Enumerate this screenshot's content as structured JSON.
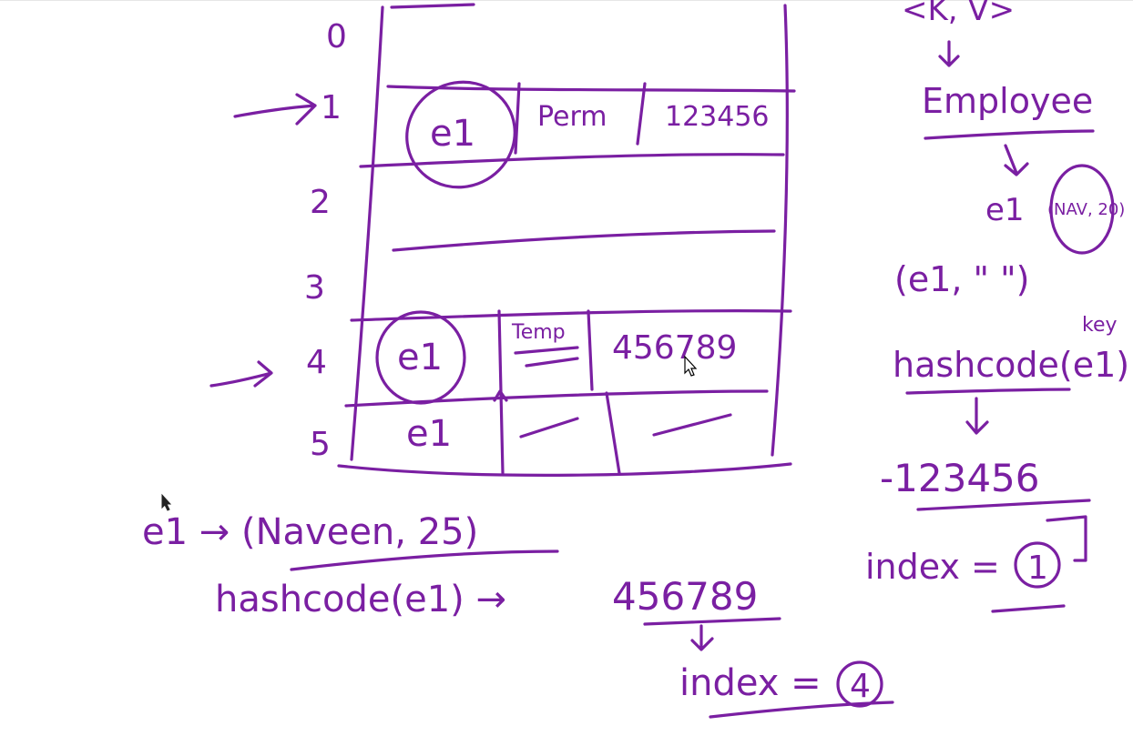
{
  "colors": {
    "ink": "#7a1fa2",
    "background": "#ffffff"
  },
  "table": {
    "row_indices": [
      "0",
      "1",
      "2",
      "3",
      "4",
      "5"
    ],
    "rows": [
      {
        "key": "",
        "value": "",
        "hash": ""
      },
      {
        "key": "e1",
        "value": "Perm",
        "hash": "123456"
      },
      {
        "key": "",
        "value": "",
        "hash": ""
      },
      {
        "key": "",
        "value": "",
        "hash": ""
      },
      {
        "key": "e1",
        "value": "Temp",
        "hash": "456789"
      },
      {
        "key": "e1",
        "value": "—",
        "hash": "—"
      }
    ]
  },
  "right_notes": {
    "kv": "<K, V>",
    "class_name": "Employee",
    "object": "e1",
    "object_args": "(NAV, 20)",
    "put_call": "(e1, \" \")",
    "key_label": "key",
    "hash_call": "hashcode(e1)",
    "hash_value": "-123456",
    "index_label": "index =",
    "index_value": "1"
  },
  "bottom_notes": {
    "object_def": "e1 → (Naveen, 25)",
    "hash_call": "hashcode(e1) →",
    "hash_value": "456789",
    "index_label": "index =",
    "index_value": "4"
  }
}
